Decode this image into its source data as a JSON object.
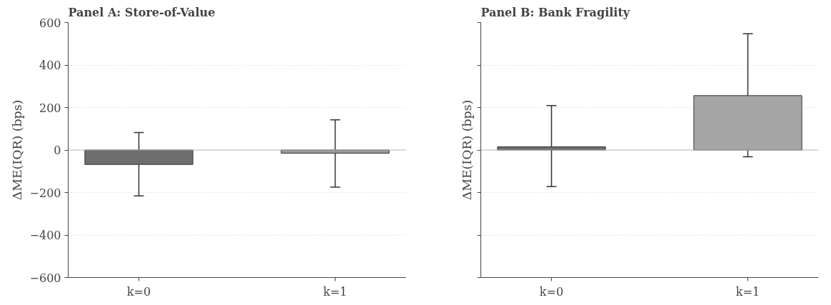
{
  "chart_data": [
    {
      "type": "bar",
      "title": "Panel A: Store-of-Value",
      "ylabel": "ΔME(IQR) (bps)",
      "categories": [
        "k=0",
        "k=1"
      ],
      "values": [
        -68,
        -15
      ],
      "colors": [
        "#6e6e6e",
        "#9c9c9c"
      ],
      "errors": [
        [
          -216,
          82
        ],
        [
          -175,
          142
        ]
      ],
      "ylim": [
        -600,
        600
      ],
      "yticks": [
        -600,
        -400,
        -200,
        0,
        200,
        400,
        600
      ],
      "grid": "y",
      "ref_lines": [
        {
          "axis": "y",
          "value": 0,
          "color": "#bbbbbb"
        }
      ]
    },
    {
      "type": "bar",
      "title": "Panel B: Bank Fragility",
      "ylabel": "ΔME(IQR) (bps)",
      "categories": [
        "k=0",
        "k=1"
      ],
      "values": [
        15,
        256
      ],
      "colors": [
        "#6e6e6e",
        "#a6a6a6"
      ],
      "errors": [
        [
          -172,
          209
        ],
        [
          -32,
          547
        ]
      ],
      "ylim": [
        -600,
        600
      ],
      "yticks": [
        -600,
        -400,
        -200,
        0,
        200,
        400,
        600
      ],
      "grid": "y",
      "tick_labels": "x",
      "ref_lines": [
        {
          "axis": "y",
          "value": 0,
          "color": "#bbbbbb"
        }
      ]
    }
  ]
}
